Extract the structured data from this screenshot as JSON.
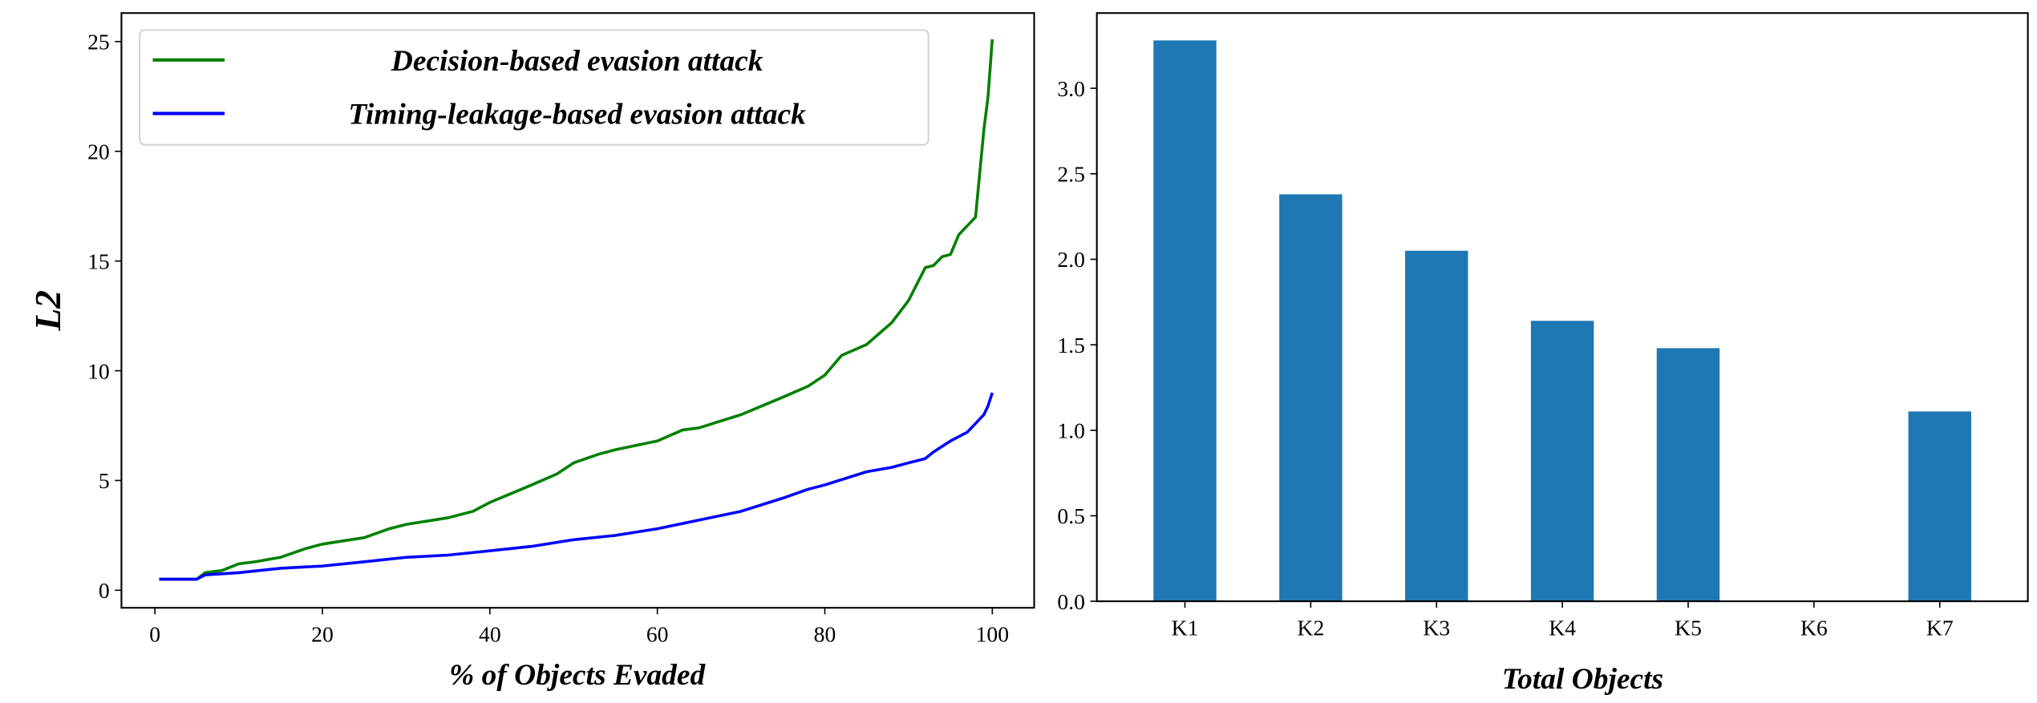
{
  "chart_data": [
    {
      "type": "line",
      "title": "",
      "xlabel": "% of Objects Evaded",
      "ylabel": "L2",
      "xlim": [
        -4,
        105
      ],
      "ylim": [
        -0.8,
        26.3
      ],
      "xticks": [
        "0",
        "20",
        "40",
        "60",
        "80",
        "100"
      ],
      "yticks": [
        "0",
        "5",
        "10",
        "15",
        "20",
        "25"
      ],
      "legend_position": "top-left",
      "series": [
        {
          "name": "Decision-based evasion attack",
          "color": "#008000",
          "x": [
            0.5,
            5,
            6,
            8,
            10,
            12,
            15,
            18,
            20,
            25,
            28,
            30,
            35,
            38,
            40,
            45,
            48,
            50,
            53,
            55,
            60,
            63,
            65,
            70,
            75,
            78,
            80,
            82,
            85,
            88,
            90,
            92,
            93,
            94,
            95,
            96,
            97,
            98,
            98.5,
            99,
            99.5,
            100
          ],
          "y": [
            0.5,
            0.5,
            0.8,
            0.9,
            1.2,
            1.3,
            1.5,
            1.9,
            2.1,
            2.4,
            2.8,
            3.0,
            3.3,
            3.6,
            4.0,
            4.8,
            5.3,
            5.8,
            6.2,
            6.4,
            6.8,
            7.3,
            7.4,
            8.0,
            8.8,
            9.3,
            9.8,
            10.7,
            11.2,
            12.2,
            13.2,
            14.7,
            14.8,
            15.2,
            15.3,
            16.2,
            16.6,
            17.0,
            19.0,
            21.0,
            22.5,
            25.1
          ]
        },
        {
          "name": "Timing-leakage-based evasion attack",
          "color": "#0000ff",
          "x": [
            0.5,
            5,
            6,
            10,
            15,
            20,
            25,
            30,
            35,
            40,
            45,
            50,
            55,
            60,
            65,
            70,
            75,
            78,
            80,
            85,
            88,
            90,
            92,
            93,
            95,
            97,
            98,
            99,
            99.5,
            100
          ],
          "y": [
            0.5,
            0.5,
            0.7,
            0.8,
            1.0,
            1.1,
            1.3,
            1.5,
            1.6,
            1.8,
            2.0,
            2.3,
            2.5,
            2.8,
            3.2,
            3.6,
            4.2,
            4.6,
            4.8,
            5.4,
            5.6,
            5.8,
            6.0,
            6.3,
            6.8,
            7.2,
            7.6,
            8.0,
            8.4,
            9.0
          ]
        }
      ]
    },
    {
      "type": "bar",
      "title": "",
      "xlabel": "Total Objects",
      "ylabel": "",
      "categories": [
        "K1",
        "K2",
        "K3",
        "K4",
        "K5",
        "K6",
        "K7"
      ],
      "values": [
        3.28,
        2.38,
        2.05,
        1.64,
        1.48,
        0,
        1.11
      ],
      "color": "#1f77b4",
      "ylim": [
        0,
        3.44
      ],
      "yticks": [
        "0.0",
        "0.5",
        "1.0",
        "1.5",
        "2.0",
        "2.5",
        "3.0"
      ]
    }
  ]
}
